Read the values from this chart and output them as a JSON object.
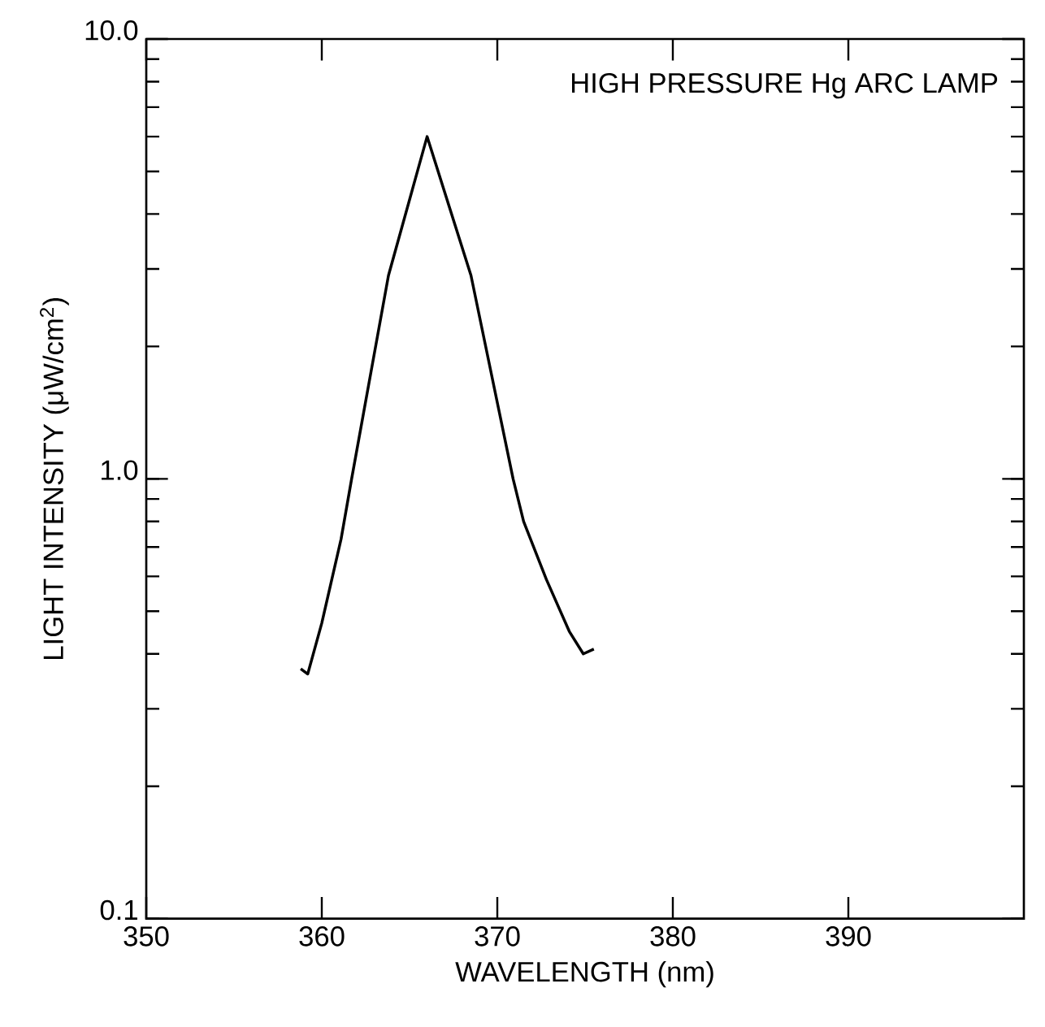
{
  "chart_data": {
    "type": "line",
    "xlabel": "WAVELENGTH (nm)",
    "ylabel": "LIGHT INTENSITY (μW/cm$^{2}$)",
    "annotations": [
      "HIGH PRESSURE Hg ARC LAMP"
    ],
    "series": [
      {
        "color": "#000000",
        "x": [
          358.8,
          359.2,
          360.0,
          361.1,
          361.7,
          363.8,
          366.0,
          368.5,
          370.9,
          371.5,
          372.8,
          374.1,
          374.9,
          375.5
        ],
        "values": [
          0.37,
          0.36,
          0.47,
          0.73,
          1.0,
          2.9,
          6.0,
          2.9,
          1.0,
          0.8,
          0.59,
          0.45,
          0.4,
          0.41
        ]
      }
    ],
    "xlim": [
      350,
      400
    ],
    "xticks": [
      350,
      360,
      370,
      380,
      390
    ],
    "ylim": [
      0.1,
      10
    ],
    "yticks": [
      0.1,
      {
        "value": 1,
        "label": "1.0"
      },
      {
        "value": 10,
        "label": "10.0"
      }
    ],
    "log": "y",
    "grid": false,
    "marker": "none",
    "line_style": "solid"
  }
}
